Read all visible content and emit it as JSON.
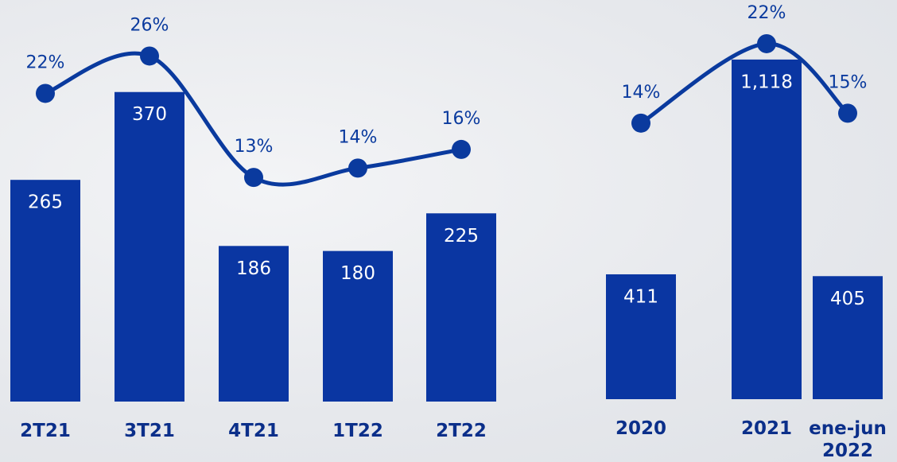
{
  "chart_data": [
    {
      "type": "bar",
      "categories": [
        "2T21",
        "3T21",
        "4T21",
        "1T22",
        "2T22"
      ],
      "values": [
        265,
        370,
        186,
        180,
        225
      ],
      "color": "#0a36a2",
      "ylim": [
        0,
        480
      ],
      "line": {
        "values": [
          22,
          26,
          13,
          14,
          16
        ],
        "value_labels": [
          "22%",
          "26%",
          "13%",
          "14%",
          "16%"
        ],
        "axis": "y2",
        "color": "#0a3a9e"
      },
      "y2lim": [
        -11,
        32
      ]
    },
    {
      "type": "bar",
      "categories": [
        "2020",
        "2021",
        "ene-jun 2022"
      ],
      "values": [
        411,
        1118,
        405
      ],
      "value_labels": [
        "411",
        "1,118",
        "405"
      ],
      "color": "#0a36a2",
      "ylim": [
        0,
        1314
      ],
      "line": {
        "values": [
          14,
          22,
          15
        ],
        "value_labels": [
          "14%",
          "22%",
          "15%"
        ],
        "axis": "y2",
        "color": "#0a3a9e"
      },
      "y2lim": [
        -13.8,
        26.4
      ]
    }
  ]
}
